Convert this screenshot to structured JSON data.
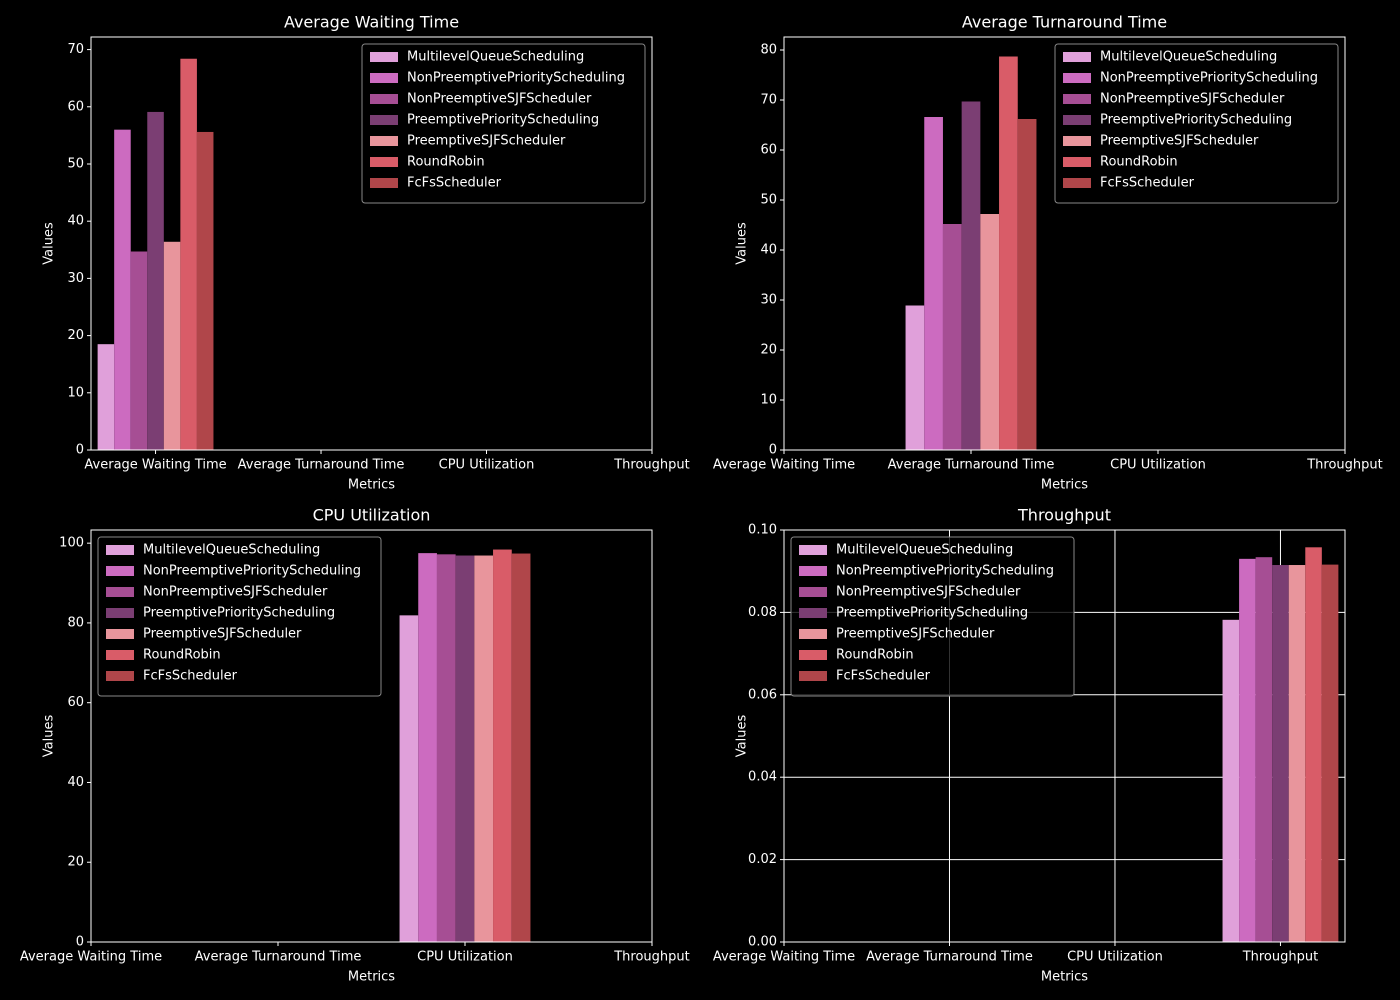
{
  "chart_data": [
    {
      "type": "bar",
      "title": "Average Waiting Time",
      "x_label": "Metrics",
      "y_label": "Values",
      "categories": [
        "Average Waiting Time",
        "Average Turnaround Time",
        "CPU Utilization",
        "Throughput"
      ],
      "xlim": [
        -0.39,
        3
      ],
      "ylim": [
        0,
        72.2
      ],
      "yticks": [
        0,
        10,
        20,
        30,
        40,
        50,
        60,
        70
      ],
      "grid": false,
      "legend": "upper right",
      "series": [
        {
          "name": "MultilevelQueueScheduling",
          "color": "#e0a0da",
          "values": [
            18.5,
            null,
            null,
            null
          ]
        },
        {
          "name": "NonPreemptivePriorityScheduling",
          "color": "#cc6bc0",
          "values": [
            56,
            null,
            null,
            null
          ]
        },
        {
          "name": "NonPreemptiveSJFScheduler",
          "color": "#a64e94",
          "values": [
            34.7,
            null,
            null,
            null
          ]
        },
        {
          "name": "PreemptivePriorityScheduling",
          "color": "#7b3e73",
          "values": [
            59.1,
            null,
            null,
            null
          ]
        },
        {
          "name": "PreemptiveSJFScheduler",
          "color": "#e8959c",
          "values": [
            36.4,
            null,
            null,
            null
          ]
        },
        {
          "name": "RoundRobin",
          "color": "#d95c68",
          "values": [
            68.4,
            null,
            null,
            null
          ]
        },
        {
          "name": "FcFsScheduler",
          "color": "#b0464a",
          "values": [
            55.6,
            null,
            null,
            null
          ]
        }
      ]
    },
    {
      "type": "bar",
      "title": "Average Turnaround Time",
      "x_label": "Metrics",
      "y_label": "Values",
      "categories": [
        "Average Waiting Time",
        "Average Turnaround Time",
        "CPU Utilization",
        "Throughput"
      ],
      "xlim": [
        0,
        3
      ],
      "ylim": [
        0,
        82.6
      ],
      "yticks": [
        0,
        10,
        20,
        30,
        40,
        50,
        60,
        70,
        80
      ],
      "grid": false,
      "legend": "upper right",
      "series": [
        {
          "name": "MultilevelQueueScheduling",
          "color": "#e0a0da",
          "values": [
            null,
            28.9,
            null,
            null
          ]
        },
        {
          "name": "NonPreemptivePriorityScheduling",
          "color": "#cc6bc0",
          "values": [
            null,
            66.6,
            null,
            null
          ]
        },
        {
          "name": "NonPreemptiveSJFScheduler",
          "color": "#a64e94",
          "values": [
            null,
            45.2,
            null,
            null
          ]
        },
        {
          "name": "PreemptivePriorityScheduling",
          "color": "#7b3e73",
          "values": [
            null,
            69.7,
            null,
            null
          ]
        },
        {
          "name": "PreemptiveSJFScheduler",
          "color": "#e8959c",
          "values": [
            null,
            47.2,
            null,
            null
          ]
        },
        {
          "name": "RoundRobin",
          "color": "#d95c68",
          "values": [
            null,
            78.7,
            null,
            null
          ]
        },
        {
          "name": "FcFsScheduler",
          "color": "#b0464a",
          "values": [
            null,
            66.2,
            null,
            null
          ]
        }
      ]
    },
    {
      "type": "bar",
      "title": "CPU Utilization",
      "x_label": "Metrics",
      "y_label": "Values",
      "categories": [
        "Average Waiting Time",
        "Average Turnaround Time",
        "CPU Utilization",
        "Throughput"
      ],
      "xlim": [
        0,
        3
      ],
      "ylim": [
        0,
        103.3
      ],
      "yticks": [
        0,
        20,
        40,
        60,
        80,
        100
      ],
      "grid": false,
      "legend": "upper left",
      "series": [
        {
          "name": "MultilevelQueueScheduling",
          "color": "#e0a0da",
          "values": [
            null,
            null,
            81.9,
            null
          ]
        },
        {
          "name": "NonPreemptivePriorityScheduling",
          "color": "#cc6bc0",
          "values": [
            null,
            null,
            97.5,
            null
          ]
        },
        {
          "name": "NonPreemptiveSJFScheduler",
          "color": "#a64e94",
          "values": [
            null,
            null,
            97.2,
            null
          ]
        },
        {
          "name": "PreemptivePriorityScheduling",
          "color": "#7b3e73",
          "values": [
            null,
            null,
            96.9,
            null
          ]
        },
        {
          "name": "PreemptiveSJFScheduler",
          "color": "#e8959c",
          "values": [
            null,
            null,
            96.9,
            null
          ]
        },
        {
          "name": "RoundRobin",
          "color": "#d95c68",
          "values": [
            null,
            null,
            98.4,
            null
          ]
        },
        {
          "name": "FcFsScheduler",
          "color": "#b0464a",
          "values": [
            null,
            null,
            97.4,
            null
          ]
        }
      ]
    },
    {
      "type": "bar",
      "title": "Throughput",
      "x_label": "Metrics",
      "y_label": "Values",
      "categories": [
        "Average Waiting Time",
        "Average Turnaround Time",
        "CPU Utilization",
        "Throughput"
      ],
      "xlim": [
        0,
        3.39
      ],
      "ylim": [
        0,
        0.1
      ],
      "yticks": [
        {
          "value": 0,
          "label": "0.00"
        },
        {
          "value": 0.02,
          "label": "0.02"
        },
        {
          "value": 0.04,
          "label": "0.04"
        },
        {
          "value": 0.06,
          "label": "0.06"
        },
        {
          "value": 0.08,
          "label": "0.08"
        },
        {
          "value": 0.1,
          "label": "0.10"
        }
      ],
      "grid": true,
      "legend": "upper left",
      "series": [
        {
          "name": "MultilevelQueueScheduling",
          "color": "#e0a0da",
          "values": [
            null,
            null,
            null,
            0.0782
          ]
        },
        {
          "name": "NonPreemptivePriorityScheduling",
          "color": "#cc6bc0",
          "values": [
            null,
            null,
            null,
            0.093
          ]
        },
        {
          "name": "NonPreemptiveSJFScheduler",
          "color": "#a64e94",
          "values": [
            null,
            null,
            null,
            0.0934
          ]
        },
        {
          "name": "PreemptivePriorityScheduling",
          "color": "#7b3e73",
          "values": [
            null,
            null,
            null,
            0.0915
          ]
        },
        {
          "name": "PreemptiveSJFScheduler",
          "color": "#e8959c",
          "values": [
            null,
            null,
            null,
            0.0915
          ]
        },
        {
          "name": "RoundRobin",
          "color": "#d95c68",
          "values": [
            null,
            null,
            null,
            0.0958
          ]
        },
        {
          "name": "FcFsScheduler",
          "color": "#b0464a",
          "values": [
            null,
            null,
            null,
            0.0916
          ]
        }
      ]
    }
  ]
}
